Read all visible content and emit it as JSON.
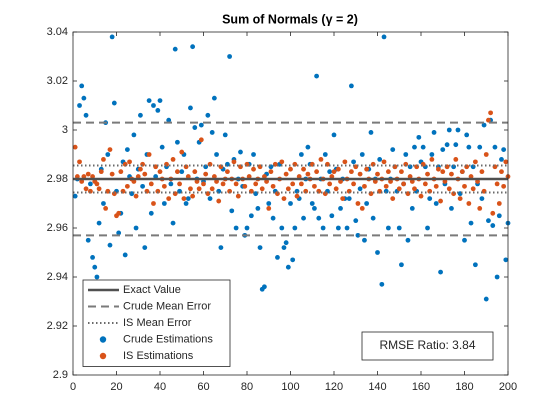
{
  "chart_data": {
    "type": "scatter",
    "title": "Sum of Normals (γ = 2)",
    "xlim": [
      0,
      200
    ],
    "xticks": [
      0,
      20,
      40,
      60,
      80,
      100,
      120,
      140,
      160,
      180,
      200
    ],
    "ylim": [
      2.9,
      3.04
    ],
    "yticks": [
      2.9,
      2.92,
      2.94,
      2.96,
      2.98,
      3,
      3.02,
      3.04
    ],
    "legend_position": "lower left",
    "annotation": "RMSE Ratio: 3.84",
    "reference_lines": [
      {
        "name": "Exact Value",
        "style": "solid",
        "color": "#505050",
        "values": [
          2.98
        ]
      },
      {
        "name": "Crude Mean Error",
        "style": "dashed",
        "color": "#7a7a7a",
        "values": [
          3.003,
          2.957
        ]
      },
      {
        "name": "IS Mean Error",
        "style": "dotted",
        "color": "#6a6a6a",
        "values": [
          2.9855,
          2.9745
        ]
      }
    ],
    "x": [
      1,
      2,
      3,
      4,
      5,
      6,
      7,
      8,
      9,
      10,
      11,
      12,
      13,
      14,
      15,
      16,
      17,
      18,
      19,
      20,
      21,
      22,
      23,
      24,
      25,
      26,
      27,
      28,
      29,
      30,
      31,
      32,
      33,
      34,
      35,
      36,
      37,
      38,
      39,
      40,
      41,
      42,
      43,
      44,
      45,
      46,
      47,
      48,
      49,
      50,
      51,
      52,
      53,
      54,
      55,
      56,
      57,
      58,
      59,
      60,
      61,
      62,
      63,
      64,
      65,
      66,
      67,
      68,
      69,
      70,
      71,
      72,
      73,
      74,
      75,
      76,
      77,
      78,
      79,
      80,
      81,
      82,
      83,
      84,
      85,
      86,
      87,
      88,
      89,
      90,
      91,
      92,
      93,
      94,
      95,
      96,
      97,
      98,
      99,
      100,
      101,
      102,
      103,
      104,
      105,
      106,
      107,
      108,
      109,
      110,
      111,
      112,
      113,
      114,
      115,
      116,
      117,
      118,
      119,
      120,
      121,
      122,
      123,
      124,
      125,
      126,
      127,
      128,
      129,
      130,
      131,
      132,
      133,
      134,
      135,
      136,
      137,
      138,
      139,
      140,
      141,
      142,
      143,
      144,
      145,
      146,
      147,
      148,
      149,
      150,
      151,
      152,
      153,
      154,
      155,
      156,
      157,
      158,
      159,
      160,
      161,
      162,
      163,
      164,
      165,
      166,
      167,
      168,
      169,
      170,
      171,
      172,
      173,
      174,
      175,
      176,
      177,
      178,
      179,
      180,
      181,
      182,
      183,
      184,
      185,
      186,
      187,
      188,
      189,
      190,
      191,
      192,
      193,
      194,
      195,
      196,
      197,
      198,
      199,
      200
    ],
    "series": [
      {
        "name": "Crude Estimations",
        "color": "#0072bd",
        "values": [
          2.973,
          2.98,
          3.01,
          3.018,
          3.013,
          3.006,
          2.955,
          2.978,
          2.948,
          2.944,
          2.94,
          2.962,
          2.984,
          2.97,
          3.003,
          2.99,
          2.953,
          3.038,
          3.011,
          2.975,
          2.958,
          2.966,
          2.987,
          2.949,
          2.992,
          2.981,
          2.974,
          2.998,
          2.96,
          2.984,
          3.006,
          2.977,
          2.952,
          2.99,
          3.012,
          2.966,
          3.01,
          2.981,
          3.008,
          3.012,
          2.993,
          2.97,
          2.985,
          3.004,
          2.978,
          2.962,
          3.033,
          2.995,
          2.975,
          2.983,
          2.99,
          2.97,
          2.972,
          3.009,
          3.034,
          3.001,
          2.98,
          2.995,
          3.002,
          2.979,
          2.985,
          3.006,
          2.972,
          2.999,
          3.013,
          2.99,
          2.975,
          2.952,
          2.984,
          2.998,
          2.986,
          3.03,
          2.967,
          2.988,
          2.96,
          2.98,
          2.991,
          2.977,
          2.957,
          2.96,
          2.986,
          2.965,
          2.99,
          2.974,
          2.968,
          2.952,
          2.935,
          2.936,
          2.982,
          2.97,
          2.985,
          2.964,
          2.975,
          2.948,
          2.986,
          2.96,
          2.952,
          2.954,
          2.944,
          2.97,
          2.947,
          2.96,
          2.975,
          2.972,
          2.99,
          2.964,
          2.98,
          2.993,
          2.986,
          2.97,
          2.968,
          3.022,
          2.964,
          2.98,
          2.96,
          2.99,
          2.975,
          2.983,
          2.965,
          2.998,
          2.984,
          2.96,
          2.968,
          2.98,
          2.972,
          2.96,
          2.972,
          3.018,
          2.987,
          2.963,
          2.957,
          2.976,
          2.99,
          2.955,
          2.97,
          2.984,
          2.999,
          2.964,
          2.98,
          2.95,
          2.988,
          2.937,
          3.038,
          2.975,
          2.96,
          2.98,
          2.992,
          2.985,
          2.975,
          2.96,
          2.945,
          2.978,
          2.99,
          2.955,
          2.985,
          2.968,
          2.993,
          2.975,
          2.997,
          2.987,
          2.993,
          2.985,
          2.96,
          2.972,
          2.99,
          2.999,
          2.97,
          2.985,
          2.942,
          2.992,
          2.978,
          2.994,
          3.0,
          2.968,
          2.985,
          2.994,
          3.0,
          2.974,
          2.983,
          2.955,
          2.998,
          2.993,
          2.962,
          2.985,
          2.945,
          2.978,
          2.993,
          2.972,
          3.002,
          2.931,
          2.963,
          3.004,
          2.961,
          2.993,
          2.94,
          2.965,
          2.988,
          2.992,
          2.947,
          2.962
        ]
      },
      {
        "name": "IS Estimations",
        "color": "#d95319",
        "values": [
          2.993,
          2.981,
          2.987,
          2.979,
          2.981,
          2.976,
          2.982,
          2.975,
          2.981,
          2.979,
          2.978,
          2.976,
          2.983,
          2.988,
          2.968,
          2.975,
          2.992,
          2.982,
          2.974,
          2.965,
          2.966,
          2.983,
          2.975,
          2.986,
          2.977,
          2.987,
          2.98,
          2.979,
          2.973,
          2.981,
          2.984,
          2.986,
          2.982,
          2.975,
          2.99,
          2.978,
          2.97,
          2.985,
          2.975,
          2.983,
          2.98,
          2.977,
          2.986,
          2.972,
          2.98,
          2.988,
          2.974,
          2.983,
          2.978,
          2.991,
          2.972,
          2.985,
          2.981,
          2.976,
          2.973,
          2.983,
          2.979,
          2.976,
          2.996,
          2.978,
          2.982,
          2.974,
          2.986,
          2.976,
          2.981,
          2.979,
          2.971,
          2.985,
          2.978,
          2.98,
          2.983,
          2.975,
          2.98,
          2.987,
          2.978,
          2.973,
          2.985,
          2.98,
          2.977,
          2.986,
          2.981,
          2.975,
          2.984,
          2.978,
          2.98,
          2.985,
          2.976,
          2.981,
          2.979,
          2.968,
          2.983,
          2.977,
          2.986,
          2.974,
          2.98,
          2.987,
          2.972,
          2.982,
          2.976,
          2.984,
          2.978,
          2.986,
          2.973,
          2.981,
          2.978,
          2.984,
          2.975,
          2.982,
          2.98,
          2.986,
          2.977,
          2.983,
          2.975,
          2.988,
          2.98,
          2.974,
          2.986,
          2.978,
          2.981,
          2.983,
          2.976,
          2.984,
          2.979,
          2.972,
          2.987,
          2.98,
          2.975,
          2.983,
          2.978,
          2.985,
          2.97,
          2.982,
          2.968,
          2.977,
          2.984,
          2.98,
          2.974,
          2.986,
          2.979,
          2.982,
          2.975,
          2.98,
          2.987,
          2.977,
          2.983,
          2.979,
          2.972,
          2.985,
          2.98,
          2.976,
          2.983,
          2.978,
          2.986,
          2.974,
          2.981,
          2.979,
          2.976,
          2.985,
          2.98,
          2.973,
          2.986,
          2.978,
          2.982,
          2.975,
          2.988,
          2.98,
          2.977,
          2.984,
          2.971,
          2.983,
          2.979,
          2.985,
          2.976,
          2.982,
          2.974,
          2.988,
          2.98,
          2.972,
          2.983,
          2.977,
          2.985,
          2.97,
          2.981,
          2.976,
          2.987,
          2.979,
          2.968,
          2.983,
          2.975,
          2.99,
          3.004,
          3.007,
          2.966,
          2.985,
          2.978,
          2.97,
          2.983,
          2.977,
          2.987,
          2.981
        ]
      }
    ]
  }
}
